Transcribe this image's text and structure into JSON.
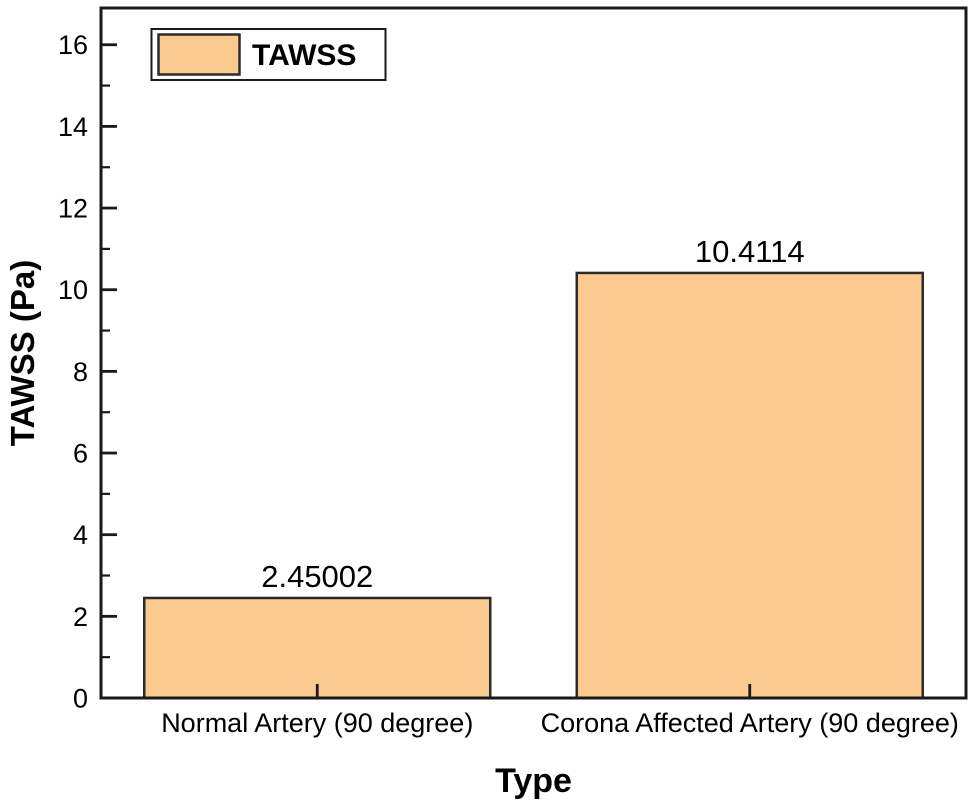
{
  "chart_data": {
    "type": "bar",
    "title": "",
    "xlabel": "Type",
    "ylabel": "TAWSS (Pa)",
    "categories": [
      "Normal Artery (90 degree)",
      "Corona Affected Artery (90 degree)"
    ],
    "values": [
      2.45002,
      10.4114
    ],
    "value_labels": [
      "2.45002",
      "10.4114"
    ],
    "series_name": "TAWSS",
    "legend": {
      "label": "TAWSS",
      "position": "top-left",
      "visible": true
    },
    "ylim": [
      0,
      16.9
    ],
    "y_major_ticks": [
      0,
      2,
      4,
      6,
      8,
      10,
      12,
      14,
      16
    ],
    "y_minor_ticks": [
      1,
      3,
      5,
      7,
      9,
      11,
      13,
      15
    ],
    "grid": false,
    "tick_direction": "in",
    "colors": {
      "bar_fill": "#FBCA8E",
      "bar_border": "#2b2b2b",
      "axis": "#1a1a1a",
      "plot_background": "#ffffff",
      "legend_background": "#ffffff",
      "text": "#000000"
    }
  }
}
